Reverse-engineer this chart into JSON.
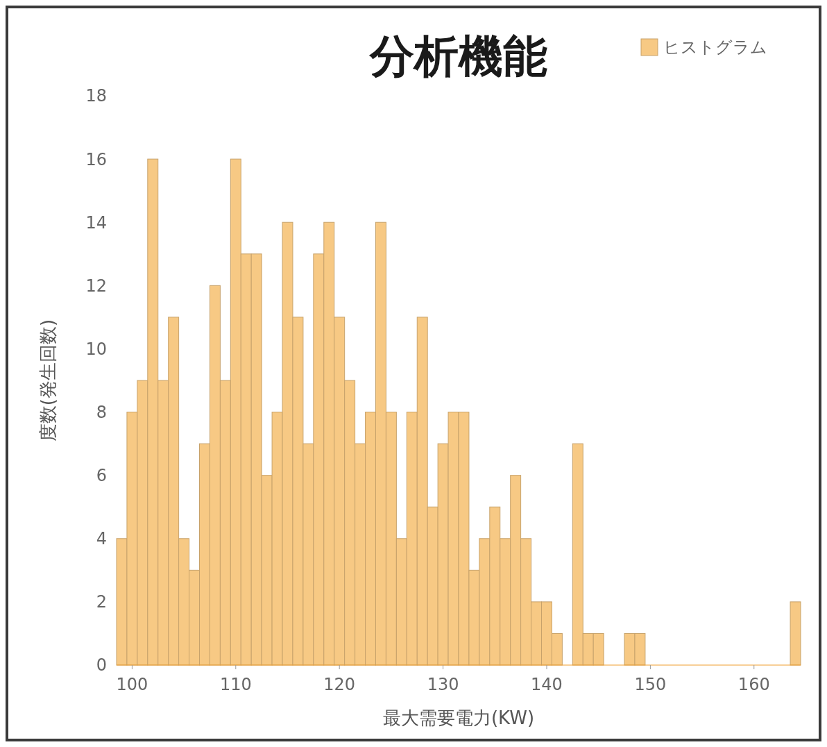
{
  "chart_data": {
    "type": "histogram",
    "title": "分析機能",
    "xlabel": "最大需要電力(KW)",
    "ylabel": "度数(発生回数)",
    "bins": [
      98.5,
      99.5,
      100.5,
      101.5,
      102.5,
      103.5,
      104.5,
      105.5,
      106.5,
      107.5,
      108.5,
      109.5,
      110.5,
      111.5,
      112.5,
      113.5,
      114.5,
      115.5,
      116.5,
      117.5,
      118.5,
      119.5,
      120.5,
      121.5,
      122.5,
      123.5,
      124.5,
      125.5,
      126.5,
      127.5,
      128.5,
      129.5,
      130.5,
      131.5,
      132.5,
      133.5,
      134.5,
      135.5,
      136.5,
      137.5,
      138.5,
      139.5,
      140.5,
      141.5,
      142.5,
      143.5,
      144.5,
      145.5,
      146.5,
      147.5,
      148.5,
      149.5,
      150.5,
      151.5,
      152.5,
      153.5,
      154.5,
      155.5,
      156.5,
      157.5,
      158.5,
      159.5,
      160.5,
      161.5,
      162.5,
      163.5,
      164.5
    ],
    "series": [
      {
        "name": "ヒストグラム",
        "color": "#f7c984",
        "values": [
          4,
          8,
          9,
          16,
          9,
          11,
          4,
          3,
          7,
          12,
          9,
          16,
          13,
          13,
          6,
          8,
          14,
          11,
          7,
          13,
          14,
          11,
          9,
          7,
          8,
          14,
          8,
          4,
          8,
          11,
          5,
          7,
          8,
          8,
          3,
          4,
          5,
          4,
          6,
          4,
          2,
          2,
          1,
          0,
          7,
          1,
          1,
          0,
          0,
          1,
          1,
          0,
          0,
          0,
          0,
          0,
          0,
          0,
          0,
          0,
          0,
          0,
          0,
          0,
          0,
          2
        ]
      }
    ],
    "xlim": [
      98.5,
      164.5
    ],
    "xticks": [
      100,
      110,
      120,
      130,
      140,
      150,
      160
    ],
    "ylim": [
      0,
      18
    ],
    "yticks": [
      0,
      2,
      4,
      6,
      8,
      10,
      12,
      14,
      16,
      18
    ],
    "grid": false,
    "legend": "top right"
  }
}
